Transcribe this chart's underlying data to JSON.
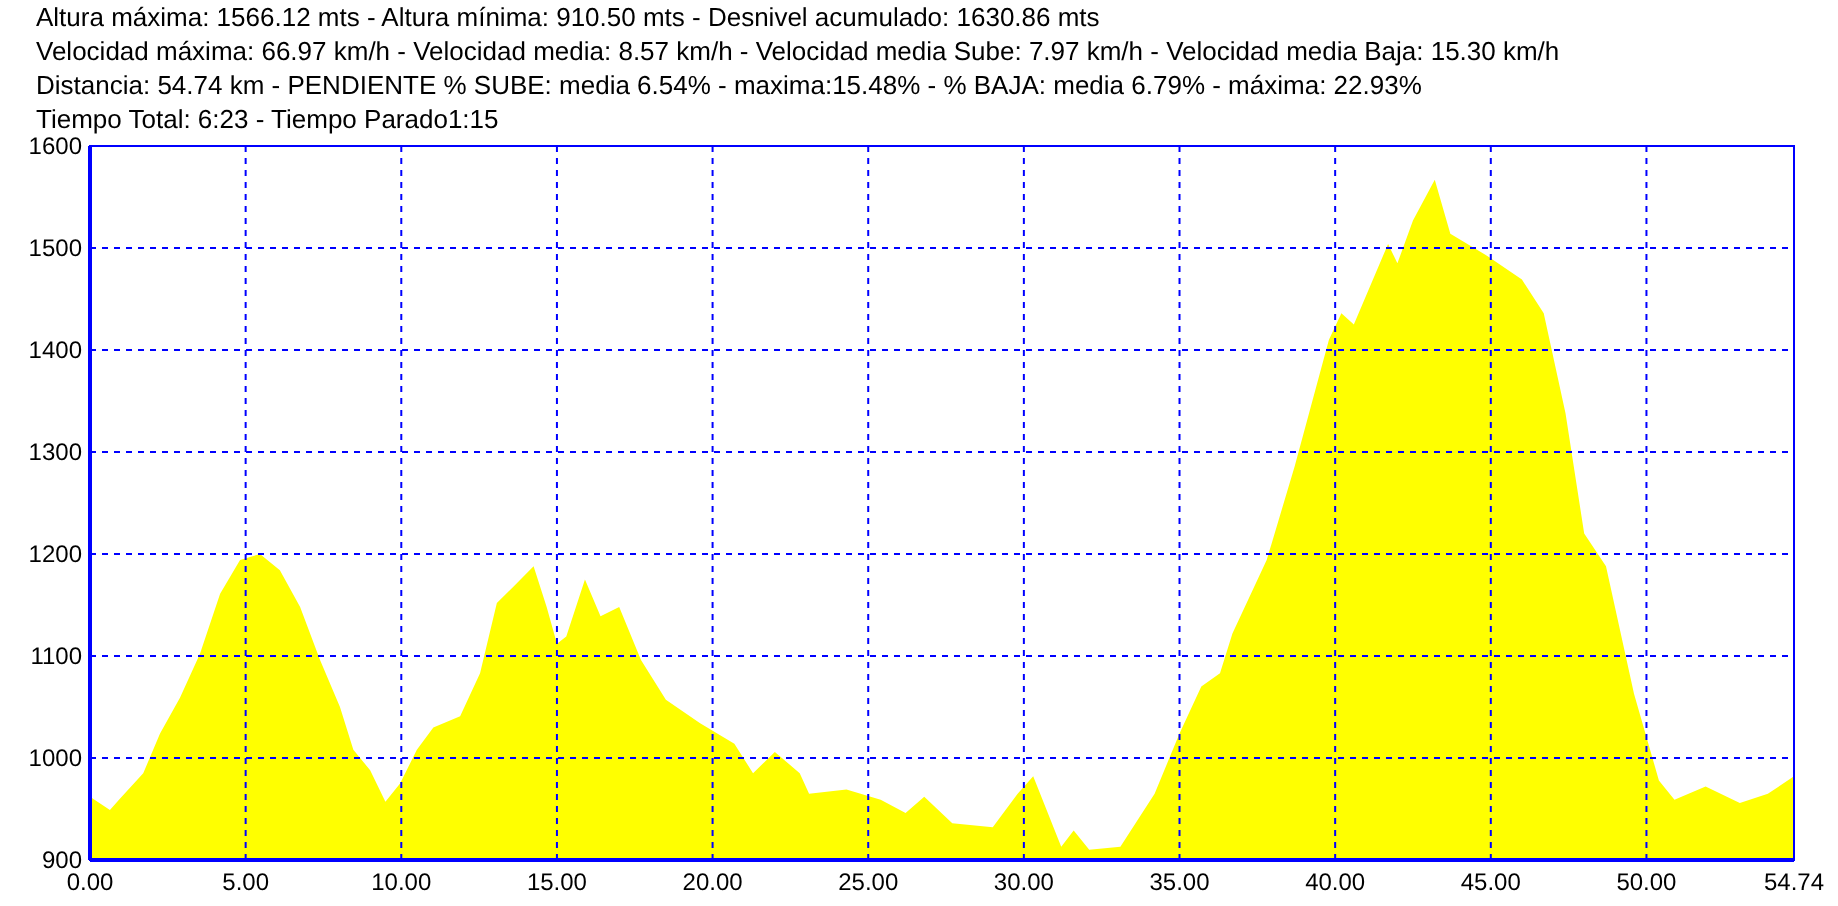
{
  "chart_data": {
    "type": "area",
    "title": "Altura máxima: 1566.12 mts - Altura mínima: 910.50 mts - Desnivel acumulado: 1630.86 mts",
    "subtitle": "Velocidad máxima: 66.97 km/h - Velocidad media: 8.57 km/h - Velocidad media Sube: 7.97 km/h - Velocidad media Baja: 15.30 km/h",
    "annotations": [
      "Distancia: 54.74 km - PENDIENTE  % SUBE: media 6.54% - maxima:15.48%  - % BAJA: media 6.79% - máxima: 22.93%",
      "Tiempo Total: 6:23 - Tiempo Parado1:15"
    ],
    "x": [
      0,
      0.64,
      0.96,
      1.71,
      2.25,
      2.89,
      3.53,
      4.18,
      4.82,
      5.46,
      6.1,
      6.75,
      7.39,
      8.03,
      8.46,
      9.0,
      9.49,
      9.96,
      10.5,
      11.03,
      11.89,
      12.53,
      13.07,
      13.6,
      14.25,
      14.67,
      15.0,
      15.3,
      15.9,
      16.4,
      17.0,
      17.7,
      18.5,
      19.6,
      20.7,
      21.3,
      22.0,
      22.8,
      23.1,
      24.3,
      25.4,
      26.2,
      26.8,
      27.7,
      29.0,
      29.8,
      30.3,
      31.2,
      31.6,
      32.1,
      33.1,
      34.2,
      35.0,
      35.7,
      36.3,
      36.7,
      37.8,
      38.7,
      39.8,
      40.2,
      40.6,
      41.7,
      42.0,
      42.5,
      43.2,
      43.7,
      44.9,
      46.0,
      46.7,
      47.4,
      48.0,
      48.7,
      49.6,
      50.4,
      50.9,
      51.9,
      53.0,
      53.9,
      54.74
    ],
    "series": [
      {
        "color": "#ffff00",
        "values": [
          962,
          949,
          960,
          985,
          1024,
          1059,
          1102,
          1161,
          1194,
          1200,
          1184,
          1148,
          1096,
          1050,
          1008,
          988,
          957,
          975,
          1008,
          1030,
          1041,
          1083,
          1152,
          1168,
          1188,
          1148,
          1112,
          1119,
          1175,
          1139,
          1148,
          1096,
          1057,
          1034,
          1014,
          985,
          1006,
          985,
          965,
          969,
          959,
          946,
          962,
          936,
          932,
          965,
          982,
          913,
          929,
          910,
          913,
          965,
          1024,
          1070,
          1083,
          1122,
          1194,
          1286,
          1410,
          1436,
          1425,
          1504,
          1485,
          1527,
          1567,
          1514,
          1492,
          1469,
          1436,
          1338,
          1220,
          1188,
          1063,
          978,
          959,
          972,
          956,
          965,
          982
        ]
      }
    ],
    "xlim": [
      0,
      54.74
    ],
    "ylim": [
      900,
      1600
    ],
    "xticks": [
      {
        "value": 0,
        "label": "0.00"
      },
      {
        "value": 5,
        "label": "5.00"
      },
      {
        "value": 10,
        "label": "10.00"
      },
      {
        "value": 15,
        "label": "15.00"
      },
      {
        "value": 20,
        "label": "20.00"
      },
      {
        "value": 25,
        "label": "25.00"
      },
      {
        "value": 30,
        "label": "30.00"
      },
      {
        "value": 35,
        "label": "35.00"
      },
      {
        "value": 40,
        "label": "40.00"
      },
      {
        "value": 45,
        "label": "45.00"
      },
      {
        "value": 50,
        "label": "50.00"
      },
      {
        "value": 54.74,
        "label": "54.74"
      }
    ],
    "yticks": [
      900,
      1000,
      1100,
      1200,
      1300,
      1400,
      1500,
      1600
    ],
    "grid": true
  }
}
